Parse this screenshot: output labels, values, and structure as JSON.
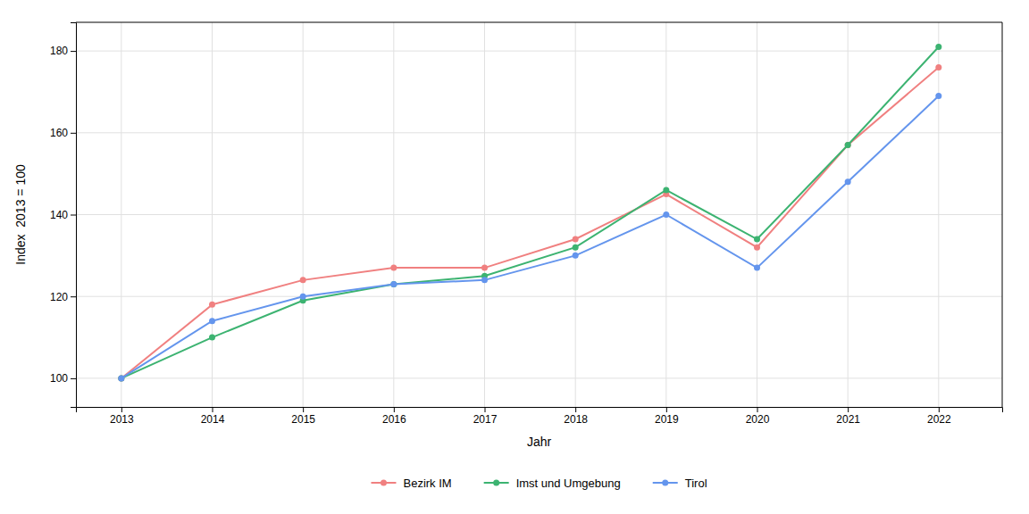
{
  "chart_data": {
    "type": "line",
    "x": [
      2013,
      2014,
      2015,
      2016,
      2017,
      2018,
      2019,
      2020,
      2021,
      2022
    ],
    "xlabel": "Jahr",
    "ylabel": "Index  2013 = 100",
    "xlim": [
      2012.5,
      2022.7
    ],
    "xticks": [
      2013,
      2014,
      2015,
      2016,
      2017,
      2018,
      2019,
      2020,
      2021,
      2022
    ],
    "ylim": [
      93,
      187
    ],
    "yticks": [
      100,
      120,
      140,
      160,
      180
    ],
    "grid": true,
    "legend": "bottom",
    "marker": "circle",
    "series": [
      {
        "name": "Bezirk IM",
        "color": "#F08080",
        "values": [
          100,
          118,
          124,
          127,
          127,
          134,
          145,
          132,
          157,
          176
        ]
      },
      {
        "name": "Imst und Umgebung",
        "color": "#3CB371",
        "values": [
          100,
          110,
          119,
          123,
          125,
          132,
          146,
          134,
          157,
          181
        ]
      },
      {
        "name": "Tirol",
        "color": "#6495ED",
        "values": [
          100,
          114,
          120,
          123,
          124,
          130,
          140,
          127,
          148,
          169
        ]
      }
    ]
  }
}
